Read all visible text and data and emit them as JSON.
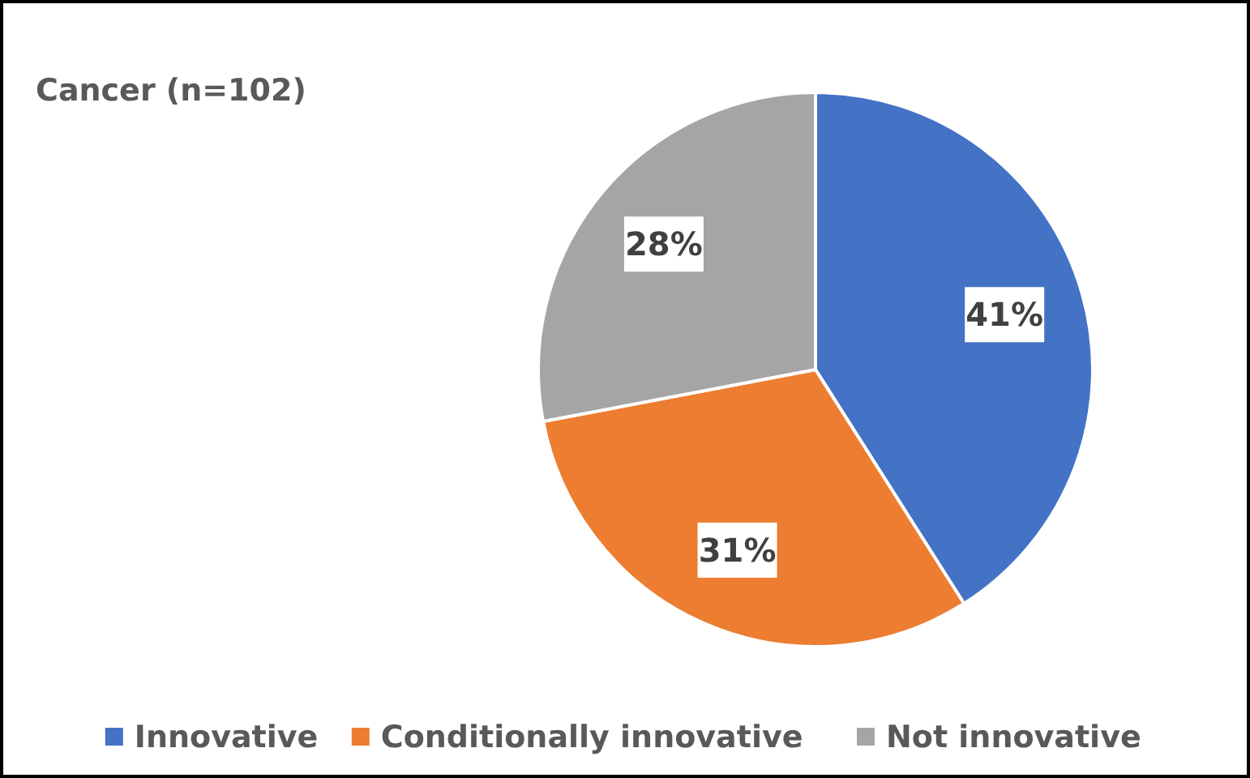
{
  "chart_data": {
    "type": "pie",
    "title": "Cancer (n=102)",
    "categories": [
      "Innovative",
      "Conditionally innovative",
      "Not innovative"
    ],
    "values": [
      41,
      31,
      28
    ],
    "colors": [
      "#4472c4",
      "#ed7d31",
      "#a5a5a5"
    ],
    "value_labels": [
      "41%",
      "31%",
      "28%"
    ],
    "legend": "bottom"
  }
}
